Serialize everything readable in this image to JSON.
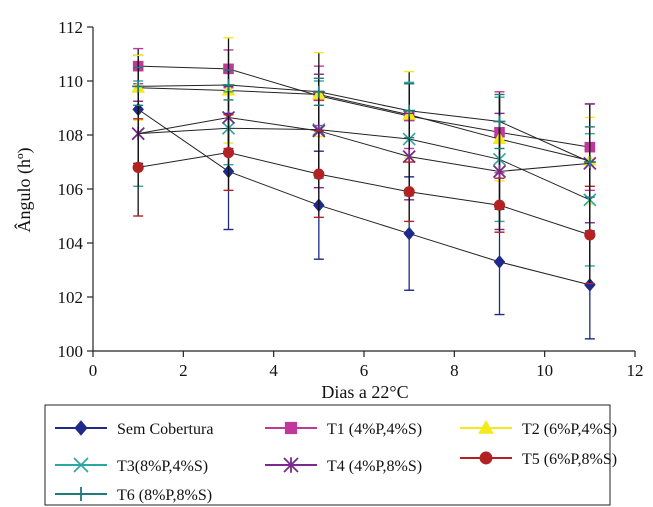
{
  "chart_data": {
    "type": "line",
    "title": "",
    "xlabel": "Dias a 22°C",
    "ylabel": "Ângulo (hº)",
    "xlim": [
      0,
      12
    ],
    "ylim": [
      100,
      112
    ],
    "xticks": [
      0,
      2,
      4,
      6,
      8,
      10,
      12
    ],
    "yticks": [
      100,
      102,
      104,
      106,
      108,
      110,
      112
    ],
    "grid": false,
    "legend_position": "bottom",
    "x": [
      1,
      3,
      5,
      7,
      9,
      11
    ],
    "series": [
      {
        "name": "Sem Cobertura",
        "marker": "diamond",
        "color": "#1f2a8a",
        "values": [
          108.95,
          106.65,
          105.4,
          104.35,
          103.3,
          102.45
        ],
        "error": [
          2.0,
          2.15,
          2.0,
          2.1,
          1.95,
          2.0
        ]
      },
      {
        "name": "T1 (4%P,4%S)",
        "marker": "square",
        "color": "#c0389a",
        "values": [
          110.55,
          110.45,
          109.45,
          108.7,
          108.1,
          107.55
        ],
        "error": [
          0.65,
          0.7,
          1.1,
          1.2,
          1.5,
          1.6
        ]
      },
      {
        "name": "T2 (6%P,4%S)",
        "marker": "triangle",
        "color": "#f2ea1a",
        "values": [
          109.75,
          109.65,
          109.5,
          108.75,
          107.85,
          107.05
        ],
        "error": [
          1.2,
          1.95,
          1.55,
          1.6,
          1.55,
          1.6
        ]
      },
      {
        "name": "T3(8%P,4%S)",
        "marker": "x",
        "color": "#2aa6a6",
        "values": [
          108.05,
          108.25,
          108.2,
          107.85,
          107.1,
          105.6
        ],
        "error": [
          1.95,
          1.35,
          1.8,
          2.1,
          2.3,
          2.45
        ]
      },
      {
        "name": "T4 (4%P,8%S)",
        "marker": "star",
        "color": "#7a2a8a",
        "values": [
          108.05,
          108.65,
          108.15,
          107.2,
          106.65,
          106.95
        ],
        "error": [
          1.2,
          1.15,
          2.1,
          1.6,
          2.15,
          2.2
        ]
      },
      {
        "name": "T5 (6%P,8%S)",
        "marker": "circle",
        "color": "#b32222",
        "values": [
          106.8,
          107.35,
          106.55,
          105.9,
          105.4,
          104.3
        ],
        "error": [
          1.8,
          1.4,
          1.6,
          1.1,
          1.0,
          1.8
        ]
      },
      {
        "name": "T6 (8%P,8%S)",
        "marker": "plus",
        "color": "#1f7a7a",
        "values": [
          109.8,
          109.85,
          109.6,
          108.9,
          108.5,
          107.0
        ],
        "error": [
          0.7,
          0.55,
          0.5,
          1.0,
          1.0,
          1.3
        ]
      }
    ]
  }
}
